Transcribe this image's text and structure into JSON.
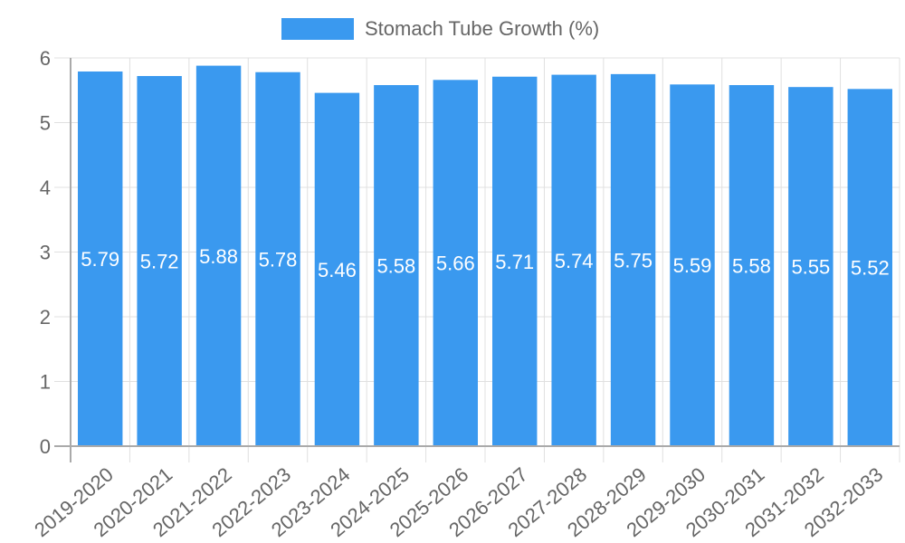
{
  "legend": {
    "label": "Stomach Tube Growth (%)",
    "color": "#3a99ef"
  },
  "chart_data": {
    "type": "bar",
    "title": "",
    "xlabel": "",
    "ylabel": "",
    "ylim": [
      0,
      6
    ],
    "yticks": [
      0,
      1,
      2,
      3,
      4,
      5,
      6
    ],
    "grid": true,
    "legend_position": "top",
    "categories": [
      "2019-2020",
      "2020-2021",
      "2021-2022",
      "2022-2023",
      "2023-2024",
      "2024-2025",
      "2025-2026",
      "2026-2027",
      "2027-2028",
      "2028-2029",
      "2029-2030",
      "2030-2031",
      "2031-2032",
      "2032-2033"
    ],
    "series": [
      {
        "name": "Stomach Tube Growth (%)",
        "color": "#3a99ef",
        "values": [
          5.79,
          5.72,
          5.88,
          5.78,
          5.46,
          5.58,
          5.66,
          5.71,
          5.74,
          5.75,
          5.59,
          5.58,
          5.55,
          5.52
        ]
      }
    ],
    "data_labels": true
  }
}
